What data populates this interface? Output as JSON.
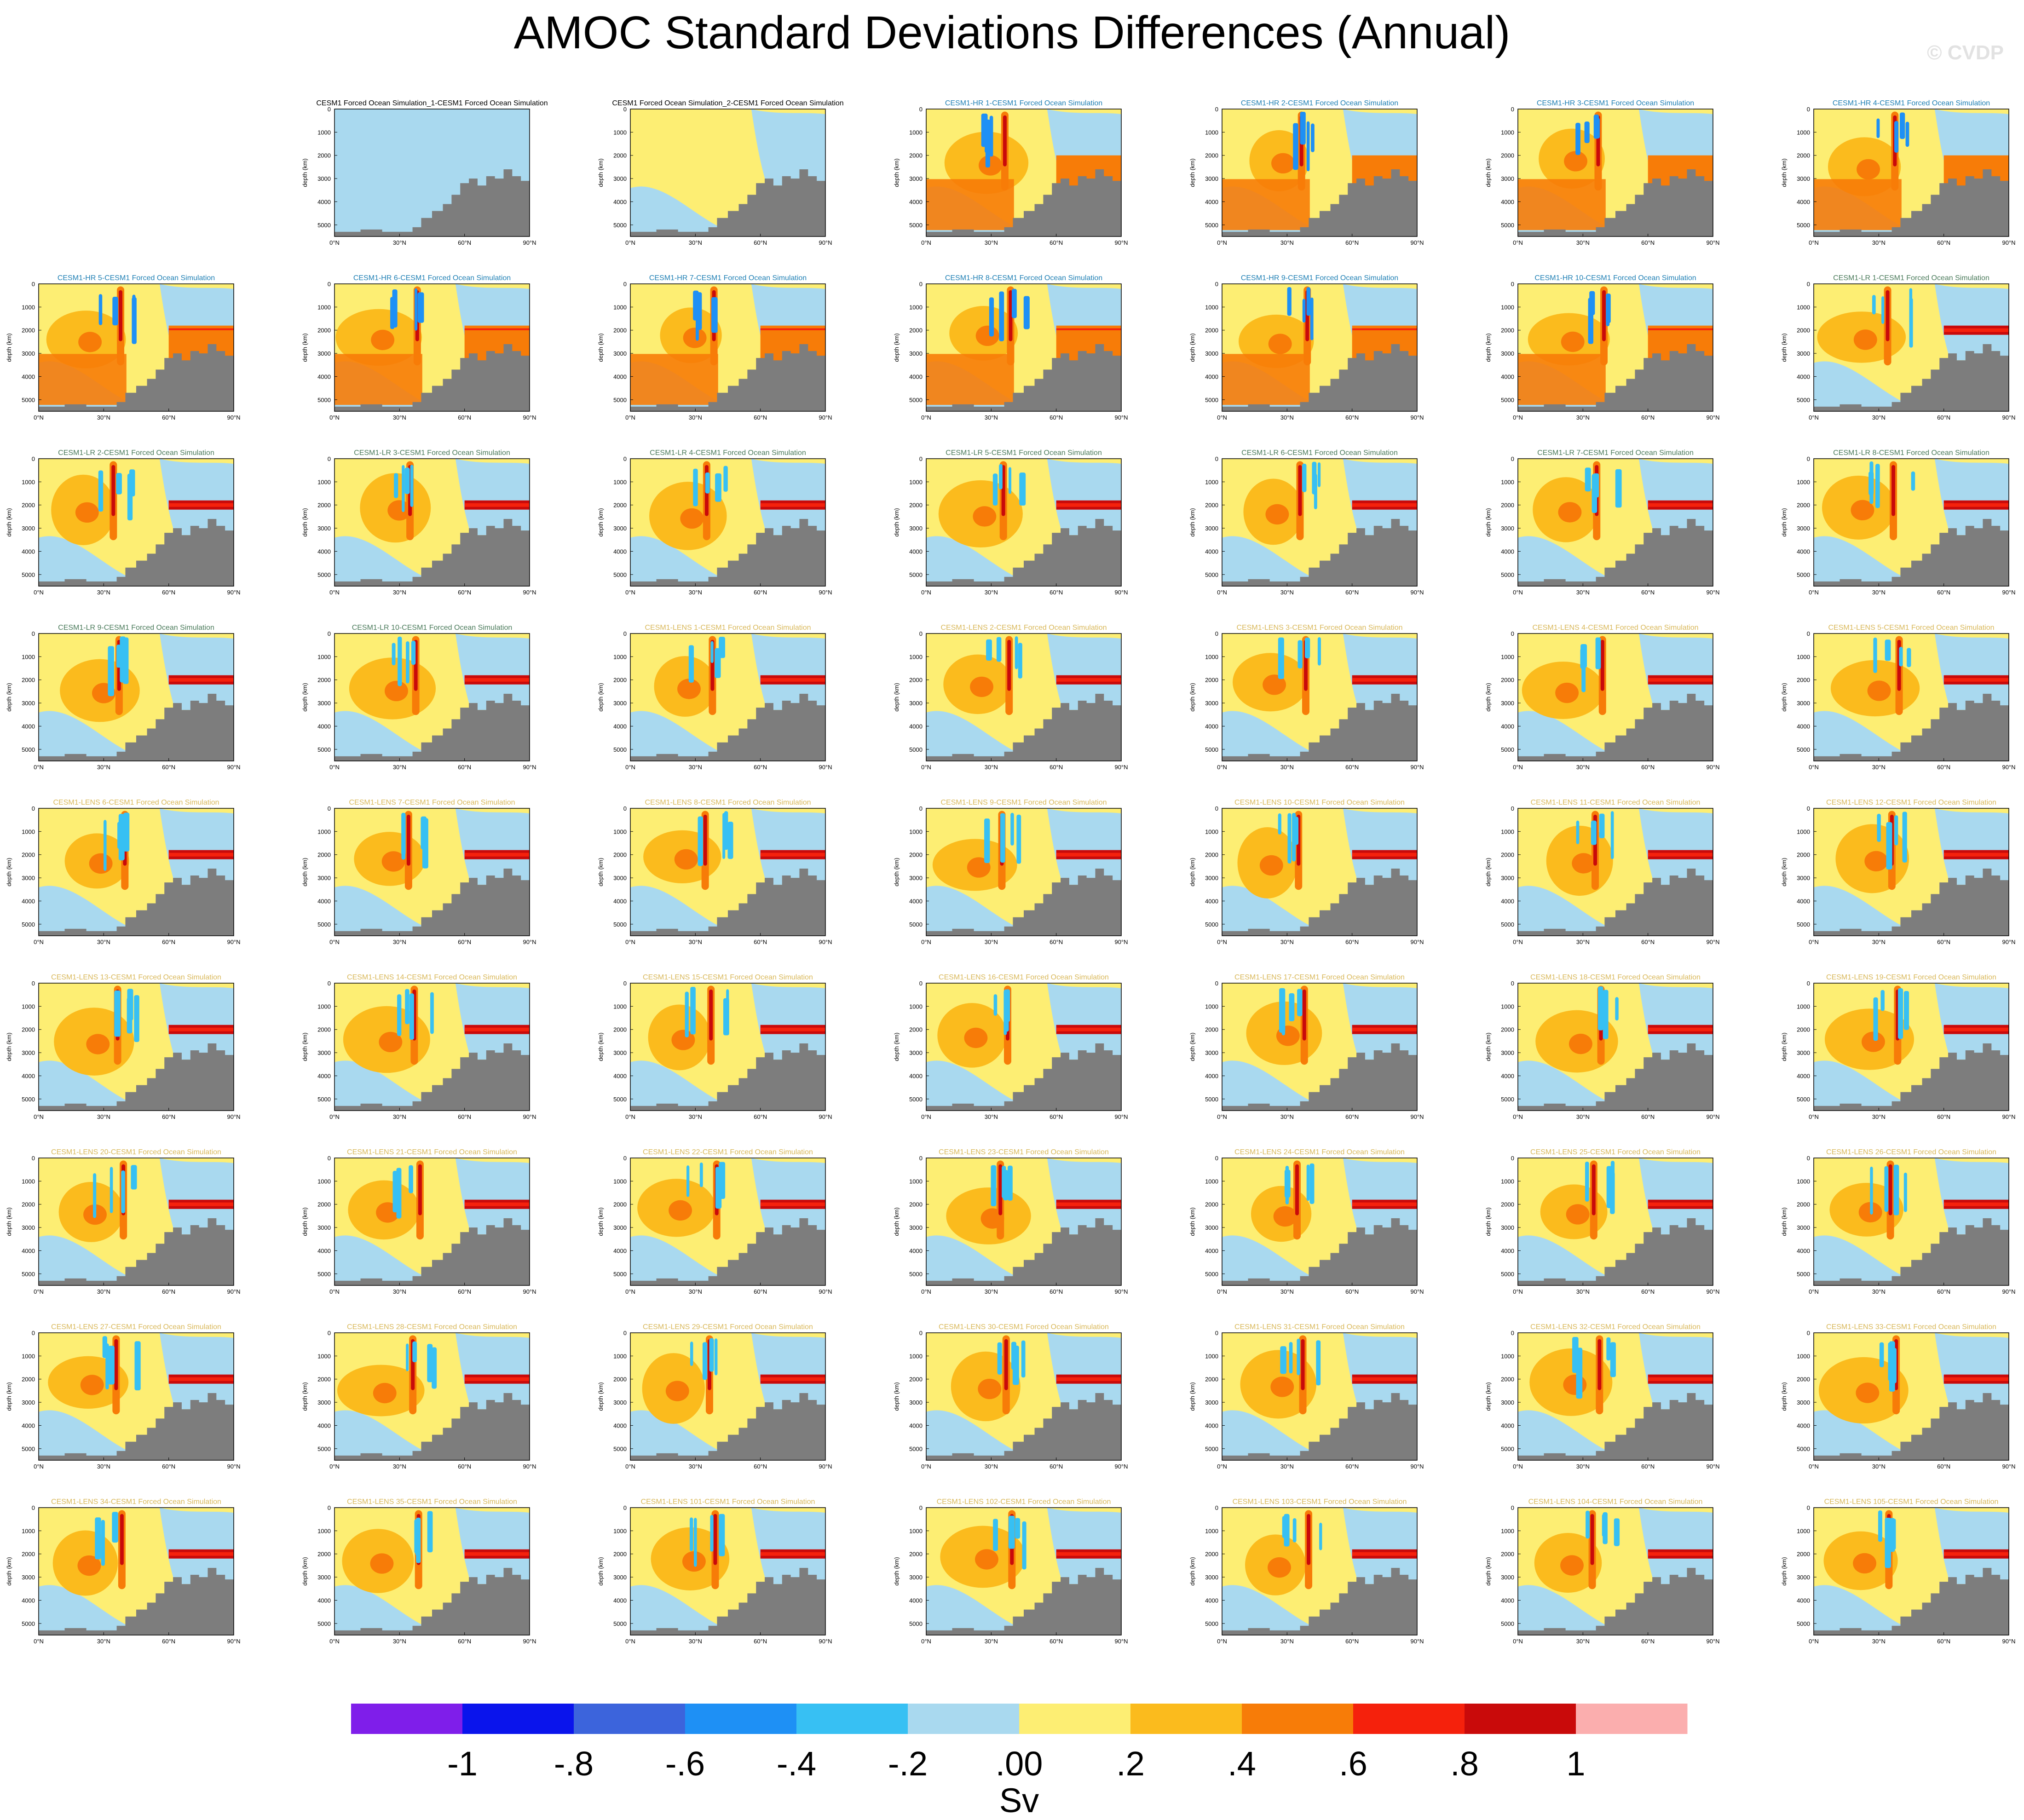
{
  "title": "AMOC Standard Deviations Differences (Annual)",
  "watermark": "© CVDP",
  "chart_data": {
    "type": "heatmap",
    "description_axes": {
      "ylabel": "depth (km)",
      "yticks": [
        "1000",
        "2000",
        "3000",
        "4000",
        "5000"
      ],
      "y_zero_label": "0",
      "xticks": [
        "0°N",
        "30°N",
        "60°N",
        "90°N"
      ],
      "xlim": [
        0,
        90
      ],
      "ylim": [
        0,
        5500
      ]
    },
    "colorbar": {
      "unit": "Sv",
      "labels": [
        "-1",
        "-.8",
        "-.6",
        "-.4",
        "-.2",
        ".00",
        ".2",
        ".4",
        ".6",
        ".8",
        "1"
      ],
      "colors": [
        "#7f1eea",
        "#0a14ec",
        "#3c64dc",
        "#1e90f5",
        "#37c0f3",
        "#a9d9ef",
        "#fdee73",
        "#fbbb1d",
        "#f77c08",
        "#f5210c",
        "#c90a0a",
        "#fbaeae"
      ]
    },
    "panels": [
      {
        "title": "CESM1 Forced Ocean Simulation_1-CESM1 Forced Ocean Simulation",
        "group": "obs",
        "row": 0,
        "col": 1
      },
      {
        "title": "CESM1 Forced Ocean Simulation_2-CESM1 Forced Ocean Simulation",
        "group": "obs",
        "row": 0,
        "col": 2
      },
      {
        "title": "CESM1-HR 1-CESM1 Forced Ocean Simulation",
        "group": "hr",
        "row": 0,
        "col": 3
      },
      {
        "title": "CESM1-HR 2-CESM1 Forced Ocean Simulation",
        "group": "hr",
        "row": 0,
        "col": 4
      },
      {
        "title": "CESM1-HR 3-CESM1 Forced Ocean Simulation",
        "group": "hr",
        "row": 0,
        "col": 5
      },
      {
        "title": "CESM1-HR 4-CESM1 Forced Ocean Simulation",
        "group": "hr",
        "row": 0,
        "col": 6
      },
      {
        "title": "CESM1-HR 5-CESM1 Forced Ocean Simulation",
        "group": "hr",
        "row": 1,
        "col": 0
      },
      {
        "title": "CESM1-HR 6-CESM1 Forced Ocean Simulation",
        "group": "hr",
        "row": 1,
        "col": 1
      },
      {
        "title": "CESM1-HR 7-CESM1 Forced Ocean Simulation",
        "group": "hr",
        "row": 1,
        "col": 2
      },
      {
        "title": "CESM1-HR 8-CESM1 Forced Ocean Simulation",
        "group": "hr",
        "row": 1,
        "col": 3
      },
      {
        "title": "CESM1-HR 9-CESM1 Forced Ocean Simulation",
        "group": "hr",
        "row": 1,
        "col": 4
      },
      {
        "title": "CESM1-HR 10-CESM1 Forced Ocean Simulation",
        "group": "hr",
        "row": 1,
        "col": 5
      },
      {
        "title": "CESM1-LR 1-CESM1 Forced Ocean Simulation",
        "group": "lr",
        "row": 1,
        "col": 6
      },
      {
        "title": "CESM1-LR 2-CESM1 Forced Ocean Simulation",
        "group": "lr",
        "row": 2,
        "col": 0
      },
      {
        "title": "CESM1-LR 3-CESM1 Forced Ocean Simulation",
        "group": "lr",
        "row": 2,
        "col": 1
      },
      {
        "title": "CESM1-LR 4-CESM1 Forced Ocean Simulation",
        "group": "lr",
        "row": 2,
        "col": 2
      },
      {
        "title": "CESM1-LR 5-CESM1 Forced Ocean Simulation",
        "group": "lr",
        "row": 2,
        "col": 3
      },
      {
        "title": "CESM1-LR 6-CESM1 Forced Ocean Simulation",
        "group": "lr",
        "row": 2,
        "col": 4
      },
      {
        "title": "CESM1-LR 7-CESM1 Forced Ocean Simulation",
        "group": "lr",
        "row": 2,
        "col": 5
      },
      {
        "title": "CESM1-LR 8-CESM1 Forced Ocean Simulation",
        "group": "lr",
        "row": 2,
        "col": 6
      },
      {
        "title": "CESM1-LR 9-CESM1 Forced Ocean Simulation",
        "group": "lr",
        "row": 3,
        "col": 0
      },
      {
        "title": "CESM1-LR 10-CESM1 Forced Ocean Simulation",
        "group": "lr",
        "row": 3,
        "col": 1
      },
      {
        "title": "CESM1-LENS 1-CESM1 Forced Ocean Simulation",
        "group": "lens",
        "row": 3,
        "col": 2
      },
      {
        "title": "CESM1-LENS 2-CESM1 Forced Ocean Simulation",
        "group": "lens",
        "row": 3,
        "col": 3
      },
      {
        "title": "CESM1-LENS 3-CESM1 Forced Ocean Simulation",
        "group": "lens",
        "row": 3,
        "col": 4
      },
      {
        "title": "CESM1-LENS 4-CESM1 Forced Ocean Simulation",
        "group": "lens",
        "row": 3,
        "col": 5
      },
      {
        "title": "CESM1-LENS 5-CESM1 Forced Ocean Simulation",
        "group": "lens",
        "row": 3,
        "col": 6
      },
      {
        "title": "CESM1-LENS 6-CESM1 Forced Ocean Simulation",
        "group": "lens",
        "row": 4,
        "col": 0
      },
      {
        "title": "CESM1-LENS 7-CESM1 Forced Ocean Simulation",
        "group": "lens",
        "row": 4,
        "col": 1
      },
      {
        "title": "CESM1-LENS 8-CESM1 Forced Ocean Simulation",
        "group": "lens",
        "row": 4,
        "col": 2
      },
      {
        "title": "CESM1-LENS 9-CESM1 Forced Ocean Simulation",
        "group": "lens",
        "row": 4,
        "col": 3
      },
      {
        "title": "CESM1-LENS 10-CESM1 Forced Ocean Simulation",
        "group": "lens",
        "row": 4,
        "col": 4
      },
      {
        "title": "CESM1-LENS 11-CESM1 Forced Ocean Simulation",
        "group": "lens",
        "row": 4,
        "col": 5
      },
      {
        "title": "CESM1-LENS 12-CESM1 Forced Ocean Simulation",
        "group": "lens",
        "row": 4,
        "col": 6
      },
      {
        "title": "CESM1-LENS 13-CESM1 Forced Ocean Simulation",
        "group": "lens",
        "row": 5,
        "col": 0
      },
      {
        "title": "CESM1-LENS 14-CESM1 Forced Ocean Simulation",
        "group": "lens",
        "row": 5,
        "col": 1
      },
      {
        "title": "CESM1-LENS 15-CESM1 Forced Ocean Simulation",
        "group": "lens",
        "row": 5,
        "col": 2
      },
      {
        "title": "CESM1-LENS 16-CESM1 Forced Ocean Simulation",
        "group": "lens",
        "row": 5,
        "col": 3
      },
      {
        "title": "CESM1-LENS 17-CESM1 Forced Ocean Simulation",
        "group": "lens",
        "row": 5,
        "col": 4
      },
      {
        "title": "CESM1-LENS 18-CESM1 Forced Ocean Simulation",
        "group": "lens",
        "row": 5,
        "col": 5
      },
      {
        "title": "CESM1-LENS 19-CESM1 Forced Ocean Simulation",
        "group": "lens",
        "row": 5,
        "col": 6
      },
      {
        "title": "CESM1-LENS 20-CESM1 Forced Ocean Simulation",
        "group": "lens",
        "row": 6,
        "col": 0
      },
      {
        "title": "CESM1-LENS 21-CESM1 Forced Ocean Simulation",
        "group": "lens",
        "row": 6,
        "col": 1
      },
      {
        "title": "CESM1-LENS 22-CESM1 Forced Ocean Simulation",
        "group": "lens",
        "row": 6,
        "col": 2
      },
      {
        "title": "CESM1-LENS 23-CESM1 Forced Ocean Simulation",
        "group": "lens",
        "row": 6,
        "col": 3
      },
      {
        "title": "CESM1-LENS 24-CESM1 Forced Ocean Simulation",
        "group": "lens",
        "row": 6,
        "col": 4
      },
      {
        "title": "CESM1-LENS 25-CESM1 Forced Ocean Simulation",
        "group": "lens",
        "row": 6,
        "col": 5
      },
      {
        "title": "CESM1-LENS 26-CESM1 Forced Ocean Simulation",
        "group": "lens",
        "row": 6,
        "col": 6
      },
      {
        "title": "CESM1-LENS 27-CESM1 Forced Ocean Simulation",
        "group": "lens",
        "row": 7,
        "col": 0
      },
      {
        "title": "CESM1-LENS 28-CESM1 Forced Ocean Simulation",
        "group": "lens",
        "row": 7,
        "col": 1
      },
      {
        "title": "CESM1-LENS 29-CESM1 Forced Ocean Simulation",
        "group": "lens",
        "row": 7,
        "col": 2
      },
      {
        "title": "CESM1-LENS 30-CESM1 Forced Ocean Simulation",
        "group": "lens",
        "row": 7,
        "col": 3
      },
      {
        "title": "CESM1-LENS 31-CESM1 Forced Ocean Simulation",
        "group": "lens",
        "row": 7,
        "col": 4
      },
      {
        "title": "CESM1-LENS 32-CESM1 Forced Ocean Simulation",
        "group": "lens",
        "row": 7,
        "col": 5
      },
      {
        "title": "CESM1-LENS 33-CESM1 Forced Ocean Simulation",
        "group": "lens",
        "row": 7,
        "col": 6
      },
      {
        "title": "CESM1-LENS 34-CESM1 Forced Ocean Simulation",
        "group": "lens",
        "row": 8,
        "col": 0
      },
      {
        "title": "CESM1-LENS 35-CESM1 Forced Ocean Simulation",
        "group": "lens",
        "row": 8,
        "col": 1
      },
      {
        "title": "CESM1-LENS 101-CESM1 Forced Ocean Simulation",
        "group": "lens",
        "row": 8,
        "col": 2
      },
      {
        "title": "CESM1-LENS 102-CESM1 Forced Ocean Simulation",
        "group": "lens",
        "row": 8,
        "col": 3
      },
      {
        "title": "CESM1-LENS 103-CESM1 Forced Ocean Simulation",
        "group": "lens",
        "row": 8,
        "col": 4
      },
      {
        "title": "CESM1-LENS 104-CESM1 Forced Ocean Simulation",
        "group": "lens",
        "row": 8,
        "col": 5
      },
      {
        "title": "CESM1-LENS 105-CESM1 Forced Ocean Simulation",
        "group": "lens",
        "row": 8,
        "col": 6
      }
    ]
  },
  "group_colors": {
    "obs": "#000000",
    "hr": "#1e7fb4",
    "lr": "#4a7a5a",
    "lens": "#d9b85a"
  },
  "land_color": "#7d7d7d"
}
